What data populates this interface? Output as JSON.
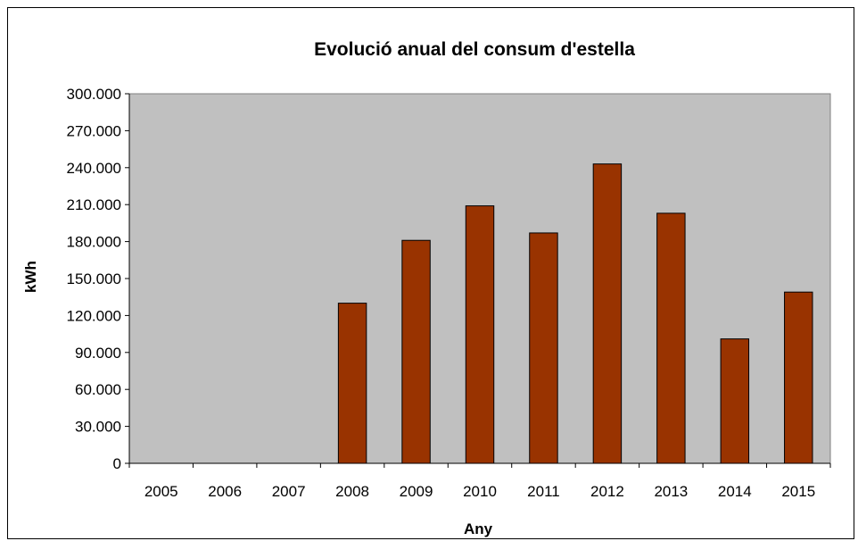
{
  "chart_data": {
    "type": "bar",
    "title": "Evolució anual del consum d'estella",
    "xlabel": "Any",
    "ylabel": "kWh",
    "categories": [
      "2005",
      "2006",
      "2007",
      "2008",
      "2009",
      "2010",
      "2011",
      "2012",
      "2013",
      "2014",
      "2015"
    ],
    "values": [
      0,
      0,
      0,
      130000,
      181000,
      209000,
      187000,
      243000,
      203000,
      101000,
      139000
    ],
    "ylim": [
      0,
      300000
    ],
    "yticks": [
      0,
      30000,
      60000,
      90000,
      120000,
      150000,
      180000,
      210000,
      240000,
      270000,
      300000
    ],
    "ytick_labels": [
      "0",
      "30.000",
      "60.000",
      "90.000",
      "120.000",
      "150.000",
      "180.000",
      "210.000",
      "240.000",
      "270.000",
      "300.000"
    ],
    "grid": false,
    "legend": "none",
    "colors": {
      "plot_background": "#c0c0c0",
      "bar_fill": "#993300",
      "bar_stroke": "#000000"
    }
  }
}
